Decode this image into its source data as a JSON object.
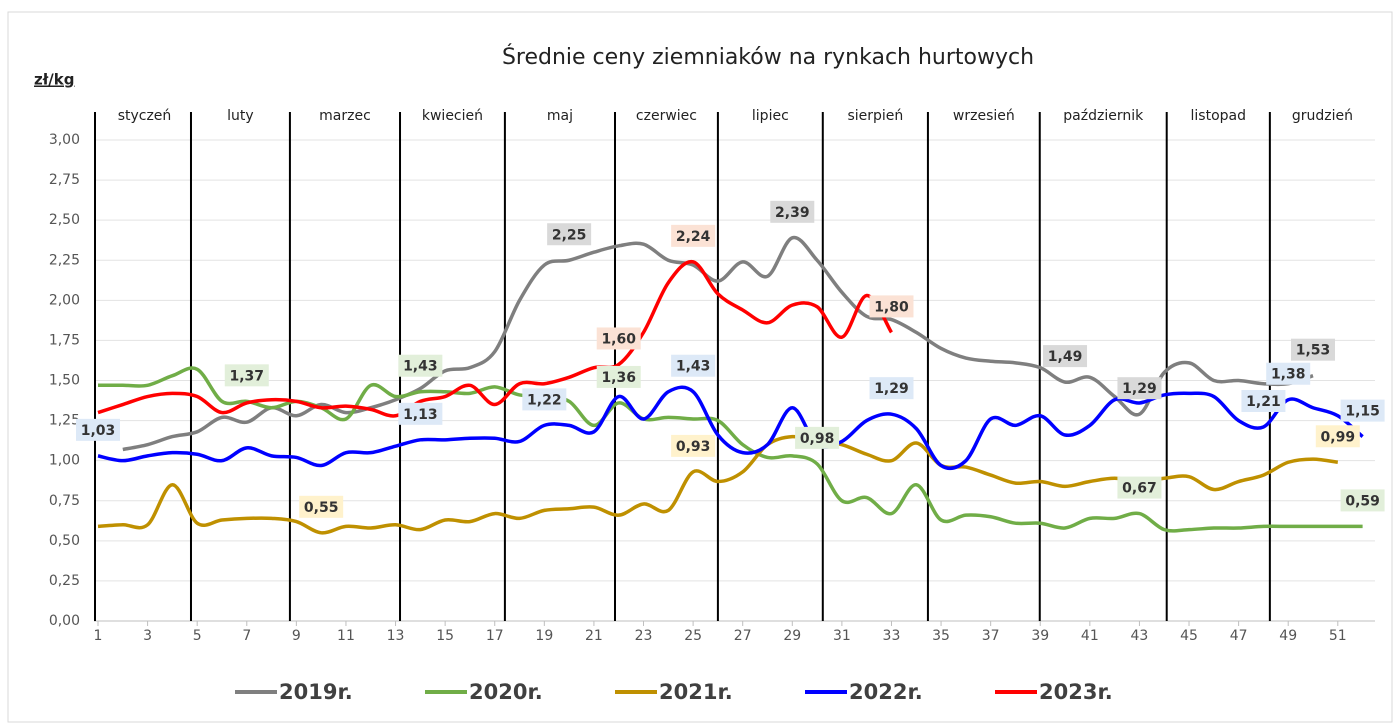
{
  "chart_data": {
    "type": "line",
    "title": "Średnie ceny ziemniaków na rynkach hurtowych",
    "y_axis_label": "zł/kg",
    "x": [
      1,
      2,
      3,
      4,
      5,
      6,
      7,
      8,
      9,
      10,
      11,
      12,
      13,
      14,
      15,
      16,
      17,
      18,
      19,
      20,
      21,
      22,
      23,
      24,
      25,
      26,
      27,
      28,
      29,
      30,
      31,
      32,
      33,
      34,
      35,
      36,
      37,
      38,
      39,
      40,
      41,
      42,
      43,
      44,
      45,
      46,
      47,
      48,
      49,
      50,
      51,
      52
    ],
    "xlim": [
      1,
      52.5
    ],
    "xticks": [
      1,
      3,
      5,
      7,
      9,
      11,
      13,
      15,
      17,
      19,
      21,
      23,
      25,
      27,
      29,
      31,
      33,
      35,
      37,
      39,
      41,
      43,
      45,
      47,
      49,
      51
    ],
    "ylim": [
      0,
      3
    ],
    "yticks": [
      {
        "value": 0,
        "label": "0,00"
      },
      {
        "value": 0.25,
        "label": "0,25"
      },
      {
        "value": 0.5,
        "label": "0,50"
      },
      {
        "value": 0.75,
        "label": "0,75"
      },
      {
        "value": 1,
        "label": "1,00"
      },
      {
        "value": 1.25,
        "label": "1,25"
      },
      {
        "value": 1.5,
        "label": "1,50"
      },
      {
        "value": 1.75,
        "label": "1,75"
      },
      {
        "value": 2,
        "label": "2,00"
      },
      {
        "value": 2.25,
        "label": "2,25"
      },
      {
        "value": 2.5,
        "label": "2,50"
      },
      {
        "value": 2.75,
        "label": "2,75"
      },
      {
        "value": 3,
        "label": "3,00"
      }
    ],
    "grid": true,
    "legend": "bottom",
    "months": [
      "styczeń",
      "luty",
      "marzec",
      "kwiecień",
      "maj",
      "czerwiec",
      "lipiec",
      "sierpień",
      "wrzesień",
      "październik",
      "listopad",
      "grudzień"
    ],
    "month_bounds": [
      4.75,
      8.74,
      13.18,
      17.41,
      21.85,
      26.0,
      30.23,
      34.47,
      38.98,
      44.1,
      48.26
    ],
    "series": [
      {
        "name": "2019r.",
        "color": "#7f7f7f",
        "label_fill": "#d9d9d9",
        "values": [
          null,
          1.07,
          1.1,
          1.15,
          1.18,
          1.27,
          1.24,
          1.33,
          1.28,
          1.35,
          1.3,
          1.33,
          1.38,
          1.45,
          1.56,
          1.58,
          1.68,
          2.0,
          2.22,
          2.25,
          2.3,
          2.34,
          2.35,
          2.25,
          2.22,
          2.12,
          2.24,
          2.15,
          2.39,
          2.25,
          2.05,
          1.9,
          1.88,
          1.8,
          1.7,
          1.64,
          1.62,
          1.61,
          1.58,
          1.49,
          1.52,
          1.4,
          1.29,
          1.55,
          1.61,
          1.5,
          1.5,
          1.48,
          1.48,
          1.53,
          null,
          null
        ],
        "value_labels": [
          null,
          null,
          null,
          null,
          null,
          null,
          null,
          null,
          null,
          null,
          null,
          null,
          null,
          null,
          null,
          null,
          null,
          null,
          null,
          "2,25",
          null,
          null,
          null,
          null,
          null,
          null,
          null,
          null,
          "2,39",
          null,
          null,
          null,
          null,
          null,
          null,
          null,
          null,
          null,
          null,
          "1,49",
          null,
          null,
          "1,29",
          null,
          null,
          null,
          null,
          null,
          null,
          "1,53",
          null,
          null
        ]
      },
      {
        "name": "2020r.",
        "color": "#70ad47",
        "label_fill": "#e2efda",
        "values": [
          1.47,
          1.47,
          1.47,
          1.53,
          1.57,
          1.37,
          1.37,
          1.33,
          1.37,
          1.33,
          1.26,
          1.47,
          1.4,
          1.43,
          1.43,
          1.42,
          1.46,
          1.41,
          1.4,
          1.37,
          1.22,
          1.36,
          1.26,
          1.27,
          1.26,
          1.25,
          1.1,
          1.02,
          1.03,
          0.98,
          0.75,
          0.77,
          0.67,
          0.85,
          0.63,
          0.66,
          0.65,
          0.61,
          0.61,
          0.58,
          0.64,
          0.64,
          0.67,
          0.57,
          0.57,
          0.58,
          0.58,
          0.59,
          0.59,
          0.59,
          0.59,
          0.59
        ],
        "value_labels": [
          null,
          null,
          null,
          null,
          null,
          null,
          "1,37",
          null,
          null,
          null,
          null,
          null,
          null,
          "1,43",
          null,
          null,
          null,
          null,
          null,
          null,
          null,
          "1,36",
          null,
          null,
          null,
          null,
          null,
          null,
          null,
          "0,98",
          null,
          null,
          null,
          null,
          null,
          null,
          null,
          null,
          null,
          null,
          null,
          null,
          "0,67",
          null,
          null,
          null,
          null,
          null,
          null,
          null,
          null,
          "0,59"
        ]
      },
      {
        "name": "2021r.",
        "color": "#bf9000",
        "label_fill": "#fff2cc",
        "values": [
          0.59,
          0.6,
          0.6,
          0.85,
          0.61,
          0.63,
          0.64,
          0.64,
          0.62,
          0.55,
          0.59,
          0.58,
          0.6,
          0.57,
          0.63,
          0.62,
          0.67,
          0.64,
          0.69,
          0.7,
          0.71,
          0.66,
          0.73,
          0.69,
          0.93,
          0.87,
          0.93,
          1.1,
          1.15,
          1.12,
          1.1,
          1.04,
          1.0,
          1.11,
          0.97,
          0.96,
          0.91,
          0.86,
          0.87,
          0.84,
          0.87,
          0.89,
          0.87,
          0.89,
          0.9,
          0.82,
          0.87,
          0.91,
          0.99,
          1.01,
          0.99,
          null
        ],
        "value_labels": [
          null,
          null,
          null,
          null,
          null,
          null,
          null,
          null,
          null,
          "0,55",
          null,
          null,
          null,
          null,
          null,
          null,
          null,
          null,
          null,
          null,
          null,
          null,
          null,
          null,
          "0,93",
          null,
          null,
          null,
          null,
          null,
          null,
          null,
          null,
          null,
          null,
          null,
          null,
          null,
          null,
          null,
          null,
          null,
          null,
          null,
          null,
          null,
          null,
          null,
          null,
          null,
          "0,99",
          null
        ]
      },
      {
        "name": "2022r.",
        "color": "#0000ff",
        "label_fill": "#dde9f7",
        "values": [
          1.03,
          1.0,
          1.03,
          1.05,
          1.04,
          1.0,
          1.08,
          1.03,
          1.02,
          0.97,
          1.05,
          1.05,
          1.09,
          1.13,
          1.13,
          1.14,
          1.14,
          1.12,
          1.22,
          1.22,
          1.18,
          1.4,
          1.26,
          1.43,
          1.43,
          1.16,
          1.05,
          1.1,
          1.33,
          1.1,
          1.12,
          1.25,
          1.29,
          1.2,
          0.97,
          1.0,
          1.26,
          1.22,
          1.28,
          1.16,
          1.22,
          1.38,
          1.36,
          1.41,
          1.42,
          1.4,
          1.25,
          1.21,
          1.38,
          1.33,
          1.28,
          1.15
        ],
        "value_labels": [
          "1,03",
          null,
          null,
          null,
          null,
          null,
          null,
          null,
          null,
          null,
          null,
          null,
          null,
          "1,13",
          null,
          null,
          null,
          null,
          "1,22",
          null,
          null,
          null,
          null,
          null,
          "1,43",
          null,
          null,
          null,
          null,
          null,
          null,
          null,
          "1,29",
          null,
          null,
          null,
          null,
          null,
          null,
          null,
          null,
          null,
          null,
          null,
          null,
          null,
          null,
          "1,21",
          "1,38",
          null,
          null,
          "1,15"
        ]
      },
      {
        "name": "2023r.",
        "color": "#ff0000",
        "label_fill": "#fbe2d5",
        "values": [
          1.3,
          1.35,
          1.4,
          1.42,
          1.4,
          1.3,
          1.36,
          1.38,
          1.37,
          1.33,
          1.34,
          1.32,
          1.28,
          1.37,
          1.4,
          1.47,
          1.35,
          1.48,
          1.48,
          1.52,
          1.58,
          1.6,
          1.8,
          2.11,
          2.24,
          2.04,
          1.94,
          1.86,
          1.97,
          1.96,
          1.77,
          2.03,
          1.8,
          null,
          null,
          null,
          null,
          null,
          null,
          null,
          null,
          null,
          null,
          null,
          null,
          null,
          null,
          null,
          null,
          null,
          null,
          null
        ],
        "value_labels": [
          null,
          null,
          null,
          null,
          null,
          null,
          null,
          null,
          null,
          null,
          null,
          null,
          null,
          null,
          null,
          null,
          null,
          null,
          null,
          null,
          null,
          "1,60",
          null,
          null,
          "2,24",
          null,
          null,
          null,
          null,
          null,
          null,
          null,
          "1,80",
          null,
          null,
          null,
          null,
          null,
          null,
          null,
          null,
          null,
          null,
          null,
          null,
          null,
          null,
          null,
          null,
          null,
          null,
          null
        ]
      }
    ]
  }
}
